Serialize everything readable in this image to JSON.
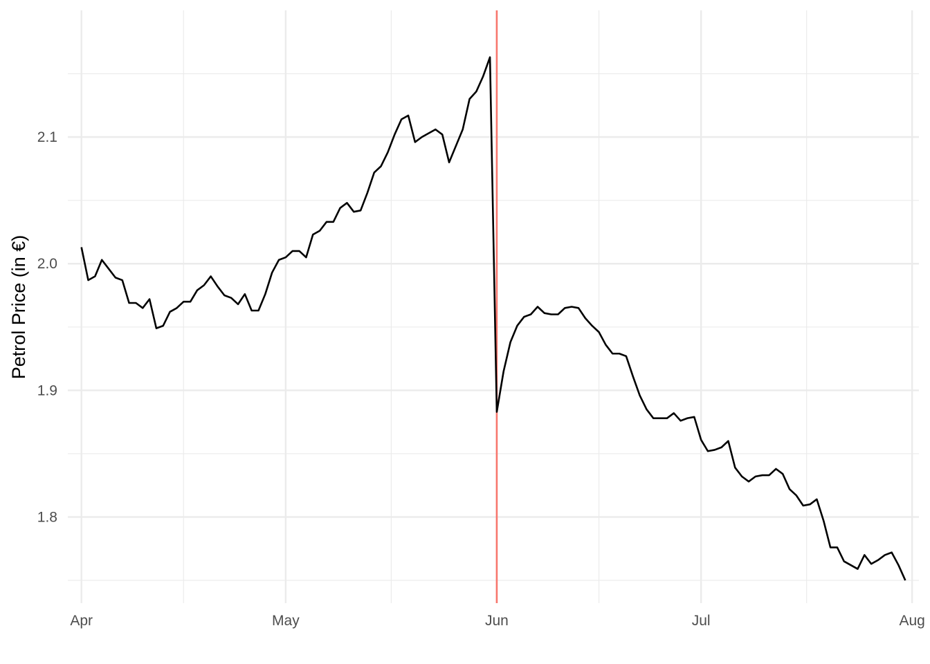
{
  "chart_data": {
    "type": "line",
    "title": "",
    "xlabel": "",
    "ylabel": "Petrol Price (in €)",
    "grid": true,
    "legend": "none",
    "x_range": [
      "2022-03-30",
      "2022-08-02"
    ],
    "ylim": [
      1.732,
      2.2
    ],
    "x_ticks": [
      {
        "date": "2022-04-01",
        "label": "Apr"
      },
      {
        "date": "2022-05-01",
        "label": "May"
      },
      {
        "date": "2022-06-01",
        "label": "Jun"
      },
      {
        "date": "2022-07-01",
        "label": "Jul"
      },
      {
        "date": "2022-08-01",
        "label": "Aug"
      }
    ],
    "y_ticks": [
      1.8,
      1.9,
      2.0,
      2.1
    ],
    "vline": {
      "date": "2022-06-01",
      "color": "#f8766d"
    },
    "line_color": "#000000",
    "series": [
      {
        "start_date": "2022-04-01",
        "values": [
          2.013,
          1.987,
          1.99,
          2.003,
          1.996,
          1.989,
          1.987,
          1.969,
          1.969,
          1.965,
          1.972,
          1.949,
          1.951,
          1.962,
          1.965,
          1.97,
          1.97,
          1.979,
          1.983,
          1.99,
          1.982,
          1.975,
          1.973,
          1.968,
          1.976,
          1.963,
          1.963,
          1.976,
          1.993,
          2.003,
          2.005,
          2.01,
          2.01,
          2.005,
          2.023,
          2.026,
          2.033,
          2.033,
          2.044,
          2.048,
          2.041,
          2.042,
          2.056,
          2.072,
          2.077,
          2.088,
          2.102,
          2.114,
          2.117,
          2.096,
          2.1,
          2.103,
          2.106,
          2.102,
          2.08,
          2.093,
          2.106,
          2.13,
          2.136,
          2.148,
          2.163,
          1.883,
          1.915,
          1.938,
          1.951,
          1.958,
          1.96,
          1.966,
          1.961,
          1.96,
          1.96,
          1.965,
          1.966,
          1.965,
          1.957,
          1.951,
          1.946,
          1.936,
          1.929,
          1.929,
          1.927,
          1.911,
          1.896,
          1.885,
          1.878,
          1.878,
          1.878,
          1.882,
          1.876,
          1.878,
          1.879,
          1.861,
          1.852,
          1.853,
          1.855,
          1.86,
          1.839,
          1.832,
          1.828,
          1.832,
          1.833,
          1.833,
          1.838,
          1.834,
          1.822,
          1.817,
          1.809,
          1.81,
          1.814,
          1.797,
          1.776,
          1.776,
          1.765,
          1.762,
          1.759,
          1.77,
          1.763,
          1.766,
          1.77,
          1.772,
          1.762,
          1.75
        ]
      }
    ]
  }
}
